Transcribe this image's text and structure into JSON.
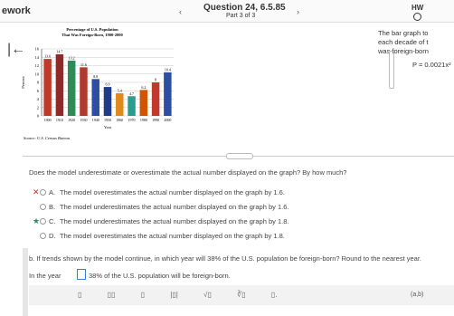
{
  "header": {
    "course": "ework",
    "question": "Question 24, 6.5.85",
    "part": "Part 3 of 3",
    "badge": "HW"
  },
  "chart_data": {
    "type": "bar",
    "title": "Percentage of U.S. Population",
    "subtitle": "That Was Foreign-Born, 1900-2000",
    "x_label": "Year",
    "y_label": "Percent",
    "source": "Source: U.S. Census Bureau",
    "categories": [
      "1900",
      "1910",
      "1920",
      "1930",
      "1940",
      "1950",
      "1960",
      "1970",
      "1980",
      "1990",
      "2000"
    ],
    "values": [
      13.6,
      14.7,
      13.2,
      11.6,
      8.8,
      6.9,
      5.4,
      4.7,
      6.2,
      8.0,
      10.4
    ],
    "colors": [
      "#c0392b",
      "#8e2a2a",
      "#2e8b57",
      "#b03a2e",
      "#2c4fa3",
      "#1f3c88",
      "#e08a1e",
      "#2a9d8f",
      "#d35400",
      "#c0392b",
      "#2c4fa3"
    ],
    "ylim": [
      0,
      16
    ],
    "yticks": [
      0,
      2,
      4,
      6,
      8,
      10,
      12,
      14,
      16
    ],
    "grid": true
  },
  "side": {
    "lines": [
      "The bar graph to",
      "each decade of t",
      "was foreign-born"
    ],
    "model": "P = 0.0021x²"
  },
  "question": "Does the model underestimate or overestimate the actual number displayed on the graph? By how much?",
  "options": [
    {
      "letter": "A.",
      "text": "The model overestimates the actual number displayed on the graph by 1.6."
    },
    {
      "letter": "B.",
      "text": "The model underestimates the actual number displayed on the graph by 1.6."
    },
    {
      "letter": "C.",
      "text": "The model underestimates the actual number displayed on the graph by 1.8."
    },
    {
      "letter": "D.",
      "text": "The model overestimates the actual number displayed on the graph by 1.8."
    }
  ],
  "part_b": {
    "prompt": "b. If trends shown by the model continue, in which year will 38% of the U.S. population be foreign-born? Round to the nearest year.",
    "before": "In the year",
    "after": "38% of the U.S. population will be foreign-born."
  },
  "toolbar": {
    "last": "(a,b)"
  }
}
